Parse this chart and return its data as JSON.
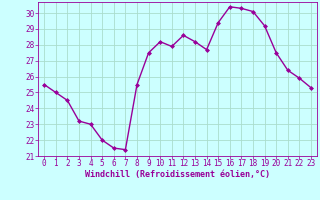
{
  "x": [
    0,
    1,
    2,
    3,
    4,
    5,
    6,
    7,
    8,
    9,
    10,
    11,
    12,
    13,
    14,
    15,
    16,
    17,
    18,
    19,
    20,
    21,
    22,
    23
  ],
  "y": [
    25.5,
    25.0,
    24.5,
    23.2,
    23.0,
    22.0,
    21.5,
    21.4,
    25.5,
    27.5,
    28.2,
    27.9,
    28.6,
    28.2,
    27.7,
    29.4,
    30.4,
    30.3,
    30.1,
    29.2,
    27.5,
    26.4,
    25.9,
    25.3
  ],
  "line_color": "#990099",
  "marker": "D",
  "marker_size": 2.0,
  "line_width": 1.0,
  "bg_color": "#ccffff",
  "grid_color": "#aaddcc",
  "xlabel": "Windchill (Refroidissement éolien,°C)",
  "xlabel_color": "#990099",
  "tick_color": "#990099",
  "xlim": [
    -0.5,
    23.5
  ],
  "ylim": [
    21.0,
    30.7
  ],
  "yticks": [
    21,
    22,
    23,
    24,
    25,
    26,
    27,
    28,
    29,
    30
  ],
  "xticks": [
    0,
    1,
    2,
    3,
    4,
    5,
    6,
    7,
    8,
    9,
    10,
    11,
    12,
    13,
    14,
    15,
    16,
    17,
    18,
    19,
    20,
    21,
    22,
    23
  ],
  "tick_fontsize": 5.5,
  "xlabel_fontsize": 6.0,
  "xlabel_fontweight": "bold"
}
